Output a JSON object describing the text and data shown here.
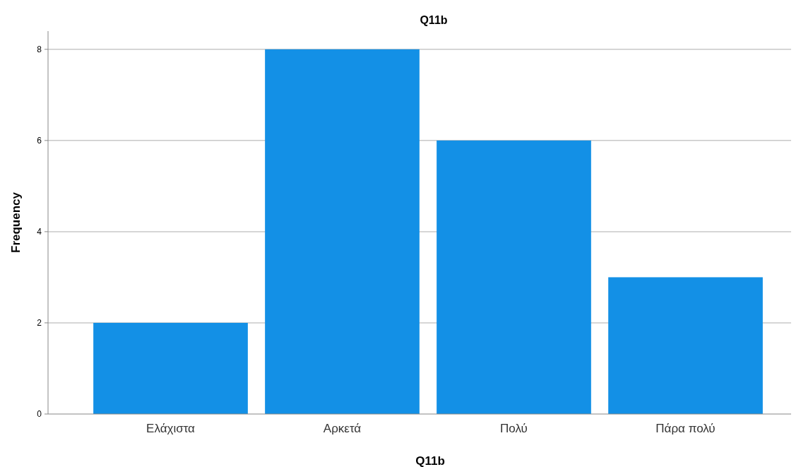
{
  "chart_data": {
    "type": "bar",
    "title": "Q11b",
    "xlabel": "Q11b",
    "ylabel": "Frequency",
    "categories": [
      "Ελάχιστα",
      "Αρκετά",
      "Πολύ",
      "Πάρα πολύ"
    ],
    "values": [
      2,
      8,
      6,
      3
    ],
    "color": "#1390e6",
    "ylim": [
      0,
      8.4
    ],
    "yticks": [
      0,
      2,
      4,
      6,
      8
    ],
    "grid": "y"
  }
}
